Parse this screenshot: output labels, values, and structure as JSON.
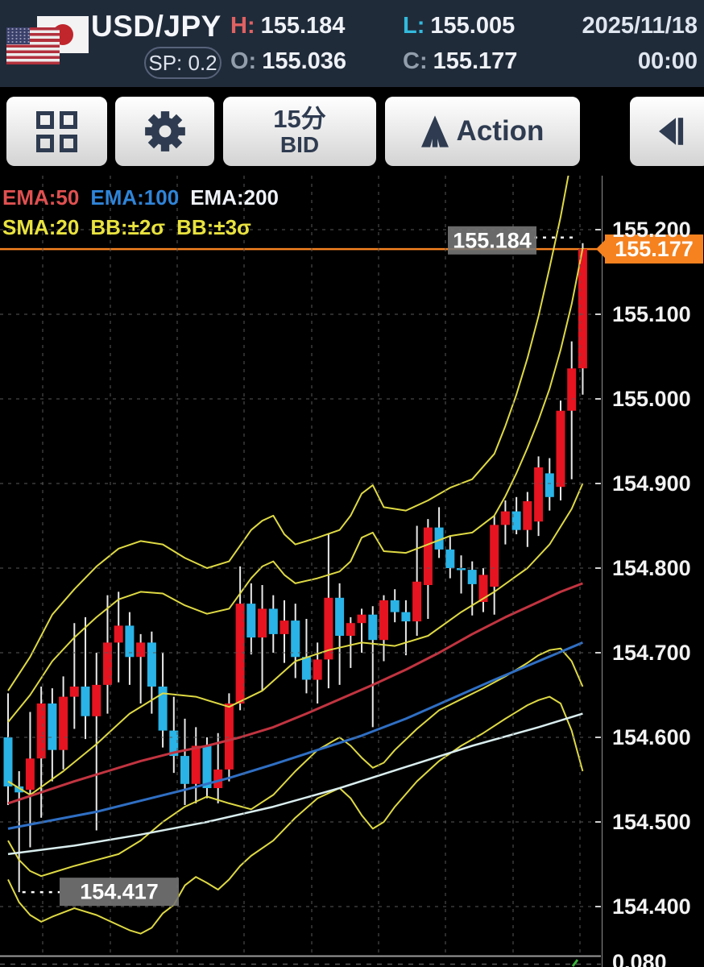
{
  "header": {
    "pair": "USD/JPY",
    "spread_label": "SP: 0.2",
    "high": {
      "label": "H:",
      "value": "155.184"
    },
    "low": {
      "label": "L:",
      "value": "155.005"
    },
    "open": {
      "label": "O:",
      "value": "155.036"
    },
    "close": {
      "label": "C:",
      "value": "155.177"
    },
    "date": "2025/11/18",
    "time": "00:00",
    "flags": [
      "us-flag",
      "japan-flag"
    ]
  },
  "toolbar": {
    "timeframe": {
      "line1": "15分",
      "line2": "BID"
    },
    "action_label": "Action",
    "buttons": [
      "layout-grid",
      "settings",
      "timeframe-bid",
      "action",
      "step-back"
    ]
  },
  "legend": {
    "row1": [
      {
        "label": "EMA:50",
        "color": "#e05050"
      },
      {
        "label": "EMA:100",
        "color": "#2f84d8"
      },
      {
        "label": "EMA:200",
        "color": "#eef2f8"
      }
    ],
    "row2": [
      {
        "label": "SMA:20",
        "color": "#e8e23e"
      },
      {
        "label": "BB:±2σ",
        "color": "#e8e23e"
      },
      {
        "label": "BB:±3σ",
        "color": "#e8e23e"
      }
    ]
  },
  "axis": {
    "ticks": [
      {
        "label": "155.200",
        "price": 155.2
      },
      {
        "label": "155.100",
        "price": 155.1
      },
      {
        "label": "155.000",
        "price": 155.0
      },
      {
        "label": "154.900",
        "price": 154.9
      },
      {
        "label": "154.800",
        "price": 154.8
      },
      {
        "label": "154.700",
        "price": 154.7
      },
      {
        "label": "154.600",
        "price": 154.6
      },
      {
        "label": "154.500",
        "price": 154.5
      },
      {
        "label": "154.400",
        "price": 154.4
      }
    ],
    "current_badge": "155.177",
    "sub_panel_label": "0.080"
  },
  "chart_data": {
    "type": "candlestick",
    "pair": "USD/JPY",
    "timeframe": "15分 BID",
    "date": "2025/11/18",
    "ylim": [
      154.342,
      155.264
    ],
    "grid": true,
    "colors": {
      "up": "#e51420",
      "down": "#29b3e6",
      "wick": "#e9e9e9",
      "bollinger": "#ded943",
      "sma20": "#ded943",
      "ema50": "#c23440",
      "ema100": "#2f6fc4",
      "ema200": "#d9edee",
      "current_line": "#f5821f",
      "grid": "#575757"
    },
    "candles_ohlc": [
      [
        154.6,
        154.652,
        154.52,
        154.542
      ],
      [
        154.542,
        154.56,
        154.417,
        154.535
      ],
      [
        154.538,
        154.63,
        154.47,
        154.575
      ],
      [
        154.575,
        154.66,
        154.505,
        154.64
      ],
      [
        154.64,
        154.658,
        154.548,
        154.585
      ],
      [
        154.585,
        154.672,
        154.562,
        154.648
      ],
      [
        154.648,
        154.735,
        154.61,
        154.66
      ],
      [
        154.66,
        154.742,
        154.598,
        154.625
      ],
      [
        154.625,
        154.7,
        154.49,
        154.662
      ],
      [
        154.662,
        154.768,
        154.628,
        154.712
      ],
      [
        154.712,
        154.772,
        154.665,
        154.732
      ],
      [
        154.732,
        154.748,
        154.662,
        154.695
      ],
      [
        154.695,
        154.722,
        154.64,
        154.712
      ],
      [
        154.712,
        154.725,
        154.628,
        154.66
      ],
      [
        154.66,
        154.7,
        154.588,
        154.608
      ],
      [
        154.608,
        154.648,
        154.558,
        154.578
      ],
      [
        154.578,
        154.622,
        154.52,
        154.545
      ],
      [
        154.545,
        154.612,
        154.522,
        154.59
      ],
      [
        154.59,
        154.6,
        154.528,
        154.54
      ],
      [
        154.54,
        154.605,
        154.522,
        154.562
      ],
      [
        154.562,
        154.652,
        154.548,
        154.64
      ],
      [
        154.64,
        154.802,
        154.632,
        154.758
      ],
      [
        154.758,
        154.782,
        154.698,
        154.718
      ],
      [
        154.718,
        154.78,
        154.655,
        154.752
      ],
      [
        154.752,
        154.768,
        154.7,
        154.722
      ],
      [
        154.722,
        154.762,
        154.688,
        154.738
      ],
      [
        154.738,
        154.758,
        154.67,
        154.695
      ],
      [
        154.695,
        154.74,
        154.652,
        154.668
      ],
      [
        154.668,
        154.712,
        154.64,
        154.692
      ],
      [
        154.692,
        154.84,
        154.658,
        154.765
      ],
      [
        154.765,
        154.782,
        154.662,
        154.72
      ],
      [
        154.72,
        154.742,
        154.682,
        154.735
      ],
      [
        154.735,
        154.752,
        154.7,
        154.745
      ],
      [
        154.745,
        154.755,
        154.612,
        154.715
      ],
      [
        154.715,
        154.768,
        154.69,
        154.762
      ],
      [
        154.762,
        154.775,
        154.736,
        154.748
      ],
      [
        154.748,
        154.762,
        154.697,
        154.737
      ],
      [
        154.737,
        154.85,
        154.72,
        154.784
      ],
      [
        154.78,
        154.858,
        154.74,
        154.848
      ],
      [
        154.848,
        154.872,
        154.812,
        154.822
      ],
      [
        154.822,
        154.838,
        154.788,
        154.8
      ],
      [
        154.8,
        154.815,
        154.77,
        154.798
      ],
      [
        154.798,
        154.808,
        154.744,
        154.781
      ],
      [
        154.76,
        154.8,
        154.748,
        154.792
      ],
      [
        154.778,
        154.862,
        154.745,
        154.851
      ],
      [
        154.851,
        154.88,
        154.828,
        154.867
      ],
      [
        154.867,
        154.884,
        154.84,
        154.845
      ],
      [
        154.845,
        154.89,
        154.825,
        154.879
      ],
      [
        154.855,
        154.932,
        154.838,
        154.919
      ],
      [
        154.912,
        154.93,
        154.868,
        154.884
      ],
      [
        154.896,
        154.998,
        154.88,
        154.986
      ],
      [
        154.986,
        155.068,
        154.905,
        155.036
      ],
      [
        155.036,
        155.184,
        155.005,
        155.177
      ]
    ],
    "overlays": {
      "sma20": [
        [
          0,
          154.548
        ],
        [
          2,
          154.532
        ],
        [
          5,
          154.56
        ],
        [
          8,
          154.592
        ],
        [
          11,
          154.628
        ],
        [
          14,
          154.652
        ],
        [
          17,
          154.648
        ],
        [
          20,
          154.636
        ],
        [
          23,
          154.655
        ],
        [
          26,
          154.69
        ],
        [
          29,
          154.703
        ],
        [
          32,
          154.712
        ],
        [
          35,
          154.708
        ],
        [
          38,
          154.72
        ],
        [
          41,
          154.748
        ],
        [
          44,
          154.772
        ],
        [
          47,
          154.8
        ],
        [
          49,
          154.828
        ],
        [
          51,
          154.87
        ],
        [
          52,
          154.9
        ]
      ],
      "bb_plus2": [
        [
          0,
          154.618
        ],
        [
          2,
          154.65
        ],
        [
          4,
          154.69
        ],
        [
          6,
          154.718
        ],
        [
          8,
          154.742
        ],
        [
          10,
          154.763
        ],
        [
          12,
          154.772
        ],
        [
          14,
          154.77
        ],
        [
          16,
          154.756
        ],
        [
          18,
          154.746
        ],
        [
          20,
          154.752
        ],
        [
          22,
          154.788
        ],
        [
          23,
          154.802
        ],
        [
          24,
          154.808
        ],
        [
          25,
          154.792
        ],
        [
          26,
          154.782
        ],
        [
          28,
          154.788
        ],
        [
          30,
          154.796
        ],
        [
          31,
          154.808
        ],
        [
          32,
          154.836
        ],
        [
          33,
          154.842
        ],
        [
          34,
          154.82
        ],
        [
          36,
          154.818
        ],
        [
          38,
          154.828
        ],
        [
          40,
          154.838
        ],
        [
          42,
          154.842
        ],
        [
          44,
          154.862
        ],
        [
          45,
          154.885
        ],
        [
          46,
          154.912
        ],
        [
          47,
          154.942
        ],
        [
          48,
          154.975
        ],
        [
          49,
          155.012
        ],
        [
          50,
          155.058
        ],
        [
          51,
          155.112
        ],
        [
          52,
          155.178
        ]
      ],
      "bb_plus3": [
        [
          0,
          154.655
        ],
        [
          2,
          154.695
        ],
        [
          4,
          154.745
        ],
        [
          6,
          154.775
        ],
        [
          8,
          154.802
        ],
        [
          10,
          154.823
        ],
        [
          12,
          154.832
        ],
        [
          14,
          154.828
        ],
        [
          16,
          154.812
        ],
        [
          18,
          154.8
        ],
        [
          20,
          154.808
        ],
        [
          22,
          154.845
        ],
        [
          23,
          154.856
        ],
        [
          24,
          154.862
        ],
        [
          25,
          154.84
        ],
        [
          26,
          154.828
        ],
        [
          28,
          154.836
        ],
        [
          30,
          154.845
        ],
        [
          31,
          154.862
        ],
        [
          32,
          154.888
        ],
        [
          33,
          154.898
        ],
        [
          34,
          154.872
        ],
        [
          36,
          154.868
        ],
        [
          38,
          154.88
        ],
        [
          40,
          154.895
        ],
        [
          42,
          154.905
        ],
        [
          44,
          154.935
        ],
        [
          45,
          154.968
        ],
        [
          46,
          155.005
        ],
        [
          47,
          155.048
        ],
        [
          48,
          155.098
        ],
        [
          49,
          155.155
        ],
        [
          50,
          155.215
        ],
        [
          51,
          155.285
        ]
      ],
      "bb_minus2": [
        [
          0,
          154.478
        ],
        [
          1,
          154.455
        ],
        [
          2,
          154.442
        ],
        [
          3,
          154.436
        ],
        [
          4,
          154.44
        ],
        [
          6,
          154.448
        ],
        [
          8,
          154.455
        ],
        [
          10,
          154.462
        ],
        [
          12,
          154.478
        ],
        [
          14,
          154.5
        ],
        [
          16,
          154.518
        ],
        [
          18,
          154.53
        ],
        [
          20,
          154.522
        ],
        [
          22,
          154.515
        ],
        [
          24,
          154.532
        ],
        [
          26,
          154.56
        ],
        [
          28,
          154.585
        ],
        [
          30,
          154.6
        ],
        [
          31,
          154.59
        ],
        [
          32,
          154.576
        ],
        [
          33,
          154.564
        ],
        [
          34,
          154.57
        ],
        [
          35,
          154.585
        ],
        [
          37,
          154.61
        ],
        [
          39,
          154.632
        ],
        [
          41,
          154.645
        ],
        [
          43,
          154.658
        ],
        [
          45,
          154.672
        ],
        [
          47,
          154.688
        ],
        [
          48,
          154.697
        ],
        [
          49,
          154.703
        ],
        [
          50,
          154.705
        ],
        [
          51,
          154.69
        ],
        [
          52,
          154.66
        ]
      ],
      "bb_minus3": [
        [
          0,
          154.432
        ],
        [
          1,
          154.405
        ],
        [
          2,
          154.39
        ],
        [
          3,
          154.382
        ],
        [
          4,
          154.388
        ],
        [
          6,
          154.398
        ],
        [
          8,
          154.39
        ],
        [
          10,
          154.378
        ],
        [
          11,
          154.372
        ],
        [
          12,
          154.368
        ],
        [
          13,
          154.375
        ],
        [
          14,
          154.392
        ],
        [
          15,
          154.402
        ],
        [
          16,
          154.425
        ],
        [
          17,
          154.435
        ],
        [
          18,
          154.428
        ],
        [
          19,
          154.42
        ],
        [
          20,
          154.432
        ],
        [
          21,
          154.448
        ],
        [
          22,
          154.46
        ],
        [
          24,
          154.478
        ],
        [
          26,
          154.505
        ],
        [
          28,
          154.528
        ],
        [
          30,
          154.54
        ],
        [
          31,
          154.528
        ],
        [
          32,
          154.508
        ],
        [
          33,
          154.492
        ],
        [
          34,
          154.5
        ],
        [
          35,
          154.518
        ],
        [
          37,
          154.548
        ],
        [
          39,
          154.572
        ],
        [
          41,
          154.59
        ],
        [
          43,
          154.605
        ],
        [
          45,
          154.622
        ],
        [
          47,
          154.638
        ],
        [
          48,
          154.644
        ],
        [
          49,
          154.648
        ],
        [
          50,
          154.64
        ],
        [
          51,
          154.608
        ],
        [
          52,
          154.56
        ]
      ],
      "ema50": [
        [
          0,
          154.522
        ],
        [
          3,
          154.535
        ],
        [
          6,
          154.548
        ],
        [
          9,
          154.56
        ],
        [
          12,
          154.572
        ],
        [
          15,
          154.582
        ],
        [
          18,
          154.59
        ],
        [
          21,
          154.6
        ],
        [
          24,
          154.612
        ],
        [
          27,
          154.628
        ],
        [
          30,
          154.645
        ],
        [
          33,
          154.662
        ],
        [
          36,
          154.68
        ],
        [
          39,
          154.7
        ],
        [
          42,
          154.722
        ],
        [
          45,
          154.742
        ],
        [
          48,
          154.76
        ],
        [
          50,
          154.772
        ],
        [
          52,
          154.782
        ]
      ],
      "ema100": [
        [
          0,
          154.492
        ],
        [
          4,
          154.502
        ],
        [
          8,
          154.512
        ],
        [
          12,
          154.525
        ],
        [
          16,
          154.538
        ],
        [
          20,
          154.552
        ],
        [
          24,
          154.568
        ],
        [
          28,
          154.585
        ],
        [
          32,
          154.602
        ],
        [
          36,
          154.622
        ],
        [
          40,
          154.645
        ],
        [
          44,
          154.668
        ],
        [
          48,
          154.69
        ],
        [
          52,
          154.712
        ]
      ],
      "ema200": [
        [
          0,
          154.462
        ],
        [
          6,
          154.472
        ],
        [
          12,
          154.485
        ],
        [
          18,
          154.5
        ],
        [
          24,
          154.518
        ],
        [
          30,
          154.54
        ],
        [
          36,
          154.565
        ],
        [
          42,
          154.59
        ],
        [
          48,
          154.612
        ],
        [
          52,
          154.628
        ]
      ]
    },
    "annotations": {
      "session_high": {
        "text": "155.184",
        "price": 155.184,
        "candle_index": 52
      },
      "session_low": {
        "text": "154.417",
        "price": 154.417,
        "candle_index": 1
      },
      "current_price_line": {
        "price": 155.177
      }
    }
  }
}
